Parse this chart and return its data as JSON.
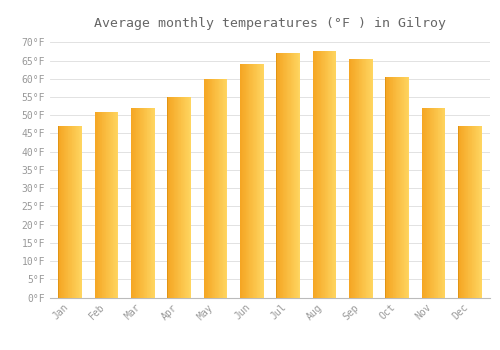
{
  "title": "Average monthly temperatures (°F ) in Gilroy",
  "months": [
    "Jan",
    "Feb",
    "Mar",
    "Apr",
    "May",
    "Jun",
    "Jul",
    "Aug",
    "Sep",
    "Oct",
    "Nov",
    "Dec"
  ],
  "values": [
    47,
    51,
    52,
    55,
    60,
    64,
    67,
    67.5,
    65.5,
    60.5,
    52,
    47
  ],
  "bar_color_left": "#F5A623",
  "bar_color_right": "#FFD060",
  "bar_edge_color": "#CC8800",
  "background_color": "#FFFFFF",
  "plot_bg_color": "#FFFFFF",
  "grid_color": "#DDDDDD",
  "ylim": [
    0,
    72
  ],
  "yticks": [
    0,
    5,
    10,
    15,
    20,
    25,
    30,
    35,
    40,
    45,
    50,
    55,
    60,
    65,
    70
  ],
  "title_fontsize": 9.5,
  "tick_fontsize": 7,
  "tick_label_color": "#999999",
  "title_color": "#666666",
  "bar_width": 0.65
}
